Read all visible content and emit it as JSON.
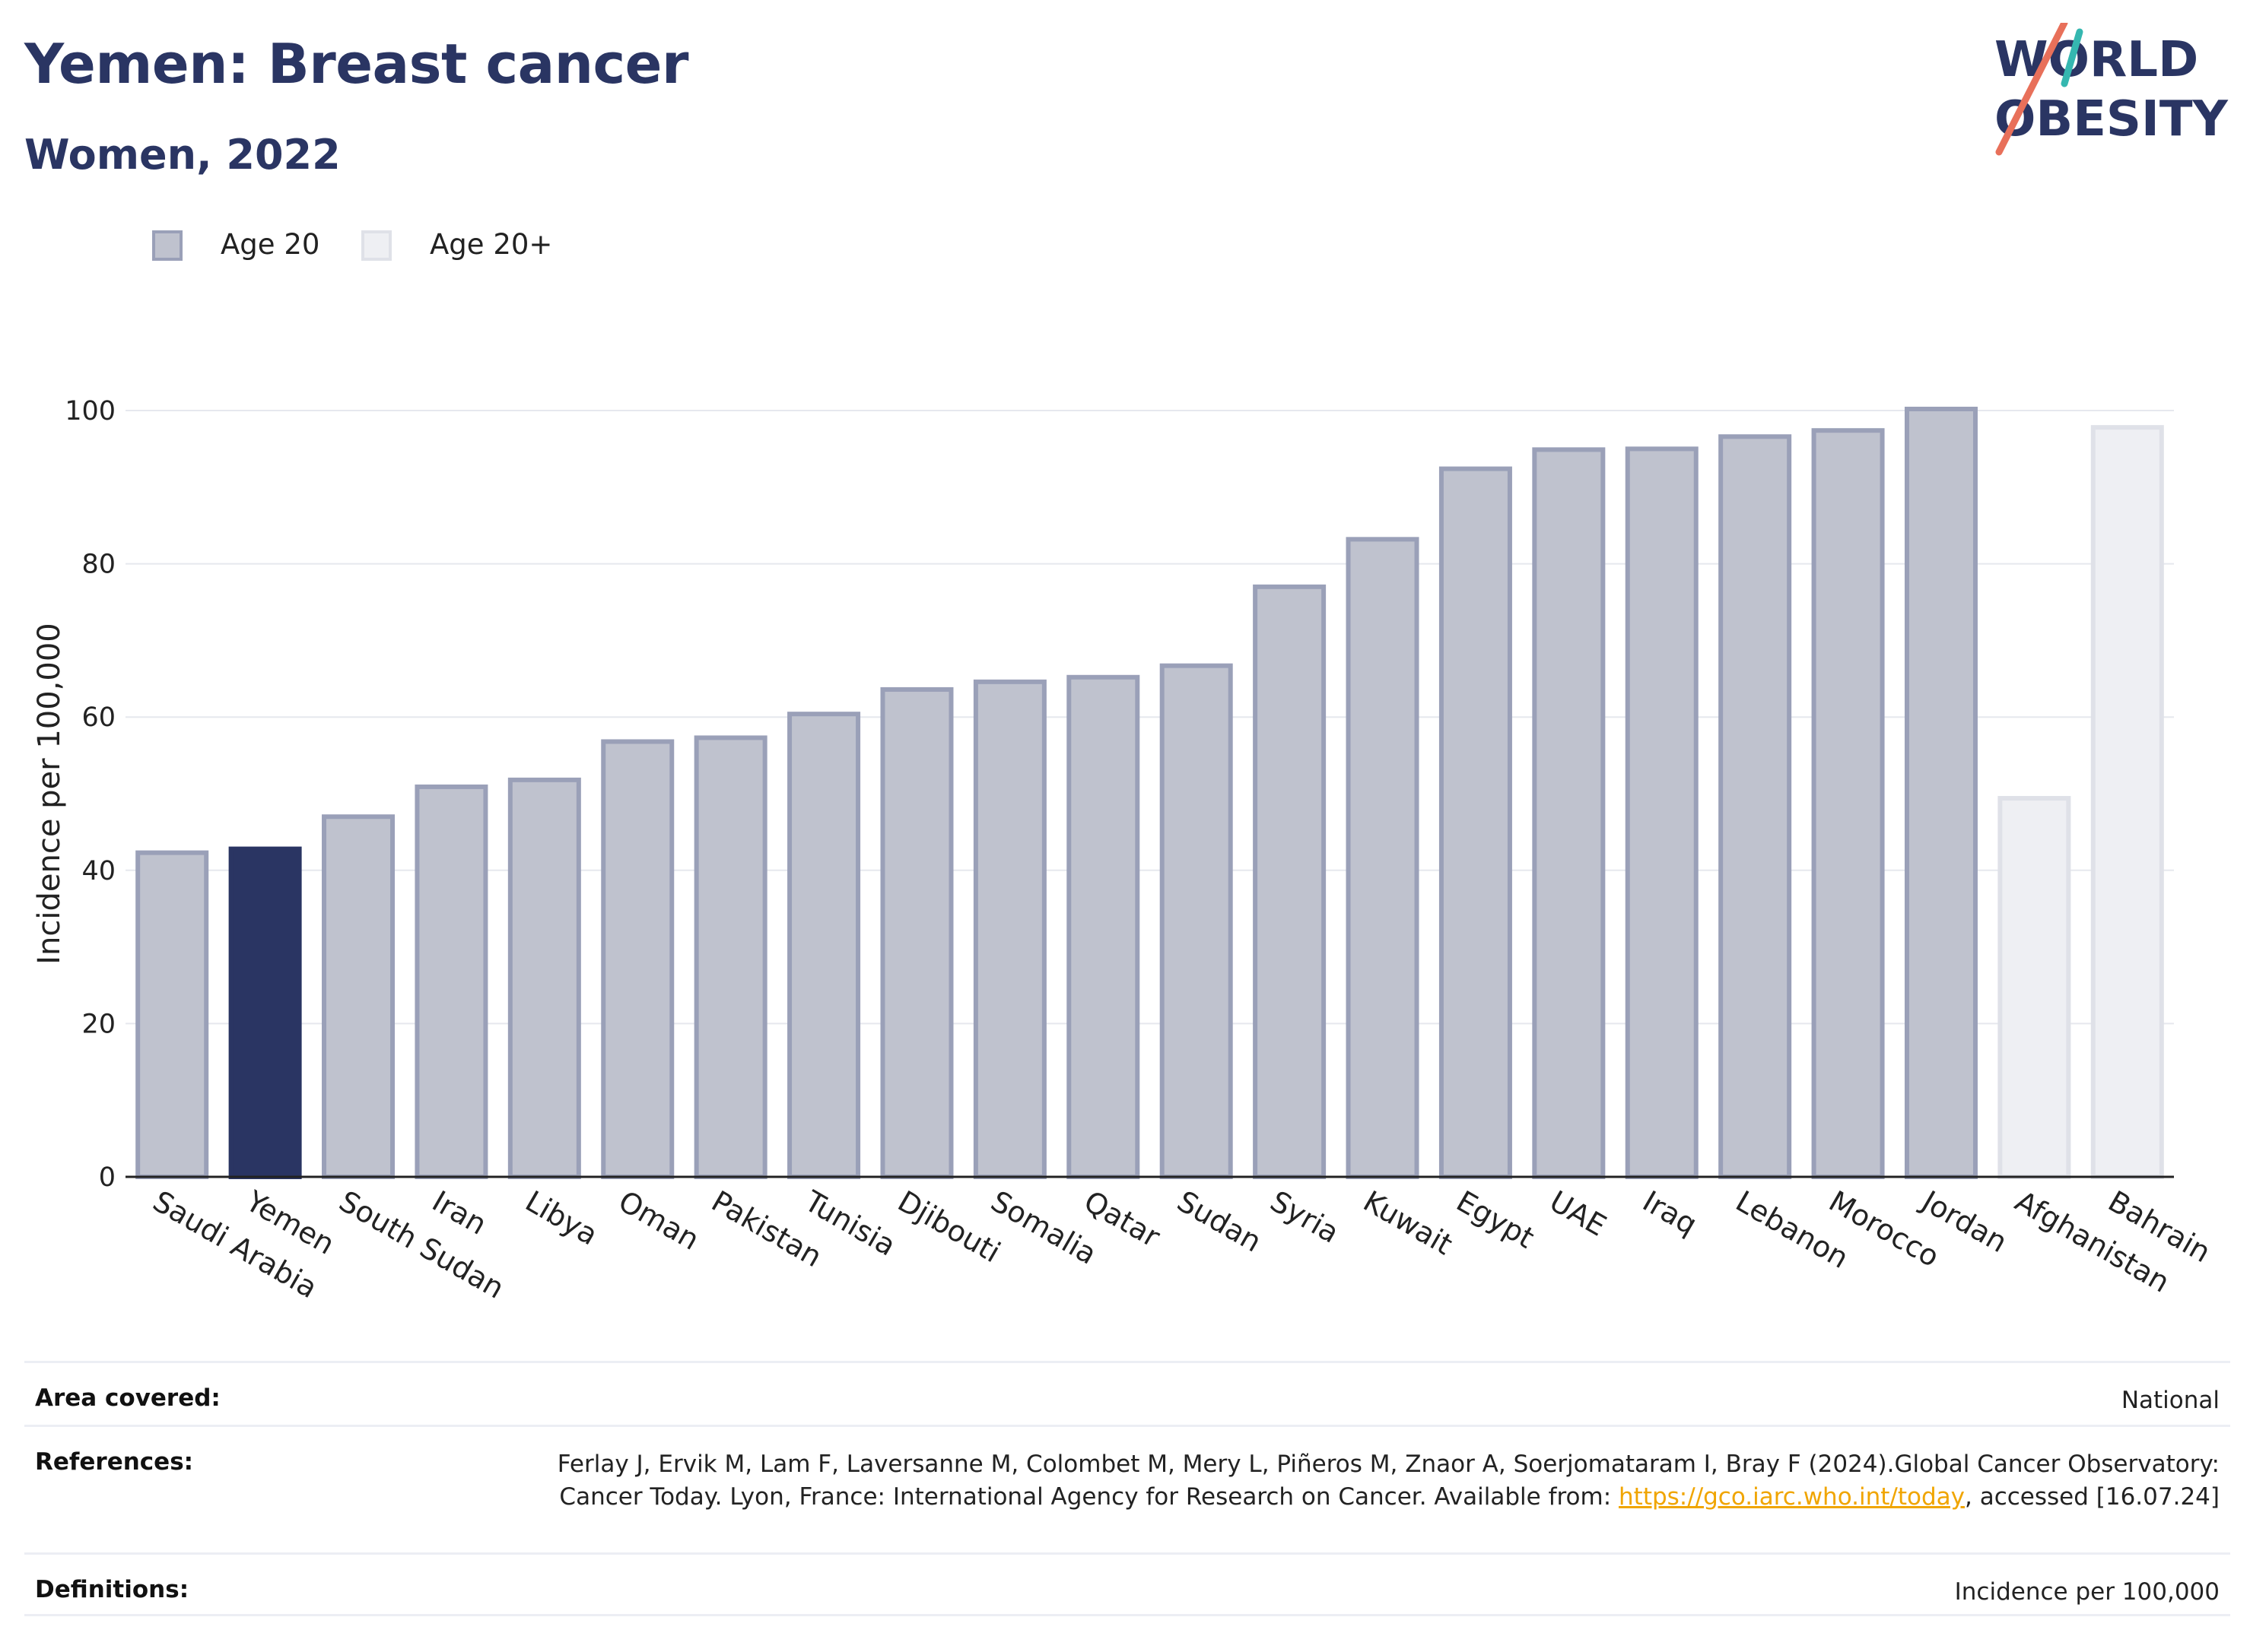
{
  "title": "Yemen: Breast cancer",
  "subtitle": "Women, 2022",
  "logo": {
    "line1": "WORLD",
    "line2": "OBESITY"
  },
  "legend": [
    {
      "label": "Age 20",
      "color": "#2a3563"
    },
    {
      "label": "Age 20+",
      "color": "#d8dbe6"
    }
  ],
  "chart_data": {
    "type": "bar",
    "ylabel": "Incidence per 100,000",
    "xlabel": "",
    "ylim": [
      0,
      110
    ],
    "yticks": [
      0,
      20,
      40,
      60,
      80,
      100
    ],
    "grid": true,
    "legend_position": "top-left",
    "highlight": "Yemen",
    "categories": [
      "Saudi Arabia",
      "Yemen",
      "South Sudan",
      "Iran",
      "Libya",
      "Oman",
      "Pakistan",
      "Tunisia",
      "Djibouti",
      "Somalia",
      "Qatar",
      "Sudan",
      "Syria",
      "Kuwait",
      "Egypt",
      "UAE",
      "Iraq",
      "Lebanon",
      "Morocco",
      "Jordan",
      "Afghanistan",
      "Bahrain"
    ],
    "values": [
      42.3,
      42.8,
      47.0,
      50.9,
      51.8,
      56.8,
      57.3,
      60.4,
      63.6,
      64.6,
      65.2,
      66.7,
      77.0,
      83.2,
      92.4,
      94.9,
      95.0,
      96.6,
      97.4,
      100.2,
      49.4,
      97.8
    ],
    "series_of": [
      "Age 20",
      "Age 20",
      "Age 20",
      "Age 20",
      "Age 20",
      "Age 20",
      "Age 20",
      "Age 20",
      "Age 20",
      "Age 20",
      "Age 20",
      "Age 20",
      "Age 20",
      "Age 20",
      "Age 20",
      "Age 20",
      "Age 20",
      "Age 20",
      "Age 20",
      "Age 20",
      "Age 20+",
      "Age 20+"
    ],
    "colors": {
      "age20_fill": "#bfc2ce",
      "age20_stroke": "#9aa0b8",
      "age20plus_fill": "#eeeff3",
      "age20plus_stroke": "#dfe1e8",
      "highlight": "#2a3563"
    }
  },
  "info": [
    {
      "key": "Area covered:",
      "value": "National"
    },
    {
      "key": "References:",
      "value_before": "Ferlay J, Ervik M, Lam F, Laversanne M, Colombet M, Mery L, Piñeros M, Znaor A, Soerjomataram I, Bray F (2024).Global Cancer Observatory: Cancer Today. Lyon, France: International Agency for Research on Cancer. Available from: ",
      "link": "https://gco.iarc.who.int/today",
      "value_after": ", accessed [16.07.24]"
    },
    {
      "key": "Definitions:",
      "value": "Incidence per 100,000"
    }
  ]
}
